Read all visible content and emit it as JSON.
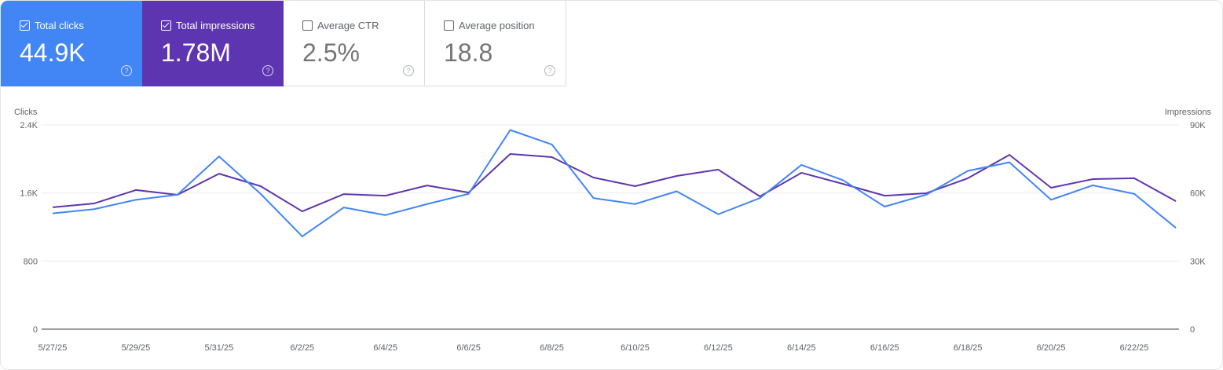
{
  "cards": [
    {
      "label": "Total clicks",
      "value": "44.9K",
      "checked": true,
      "color": "#4285f4"
    },
    {
      "label": "Total impressions",
      "value": "1.78M",
      "checked": true,
      "color": "#5e35b1"
    },
    {
      "label": "Average CTR",
      "value": "2.5%",
      "checked": false
    },
    {
      "label": "Average position",
      "value": "18.8",
      "checked": false
    }
  ],
  "chart_data": {
    "type": "line",
    "y_left_label": "Clicks",
    "y_right_label": "Impressions",
    "y_left_lim": [
      0,
      2400
    ],
    "y_right_lim": [
      0,
      90000
    ],
    "y_left_ticks": [
      "0",
      "800",
      "1.6K",
      "2.4K"
    ],
    "y_right_ticks": [
      "0",
      "30K",
      "60K",
      "90K"
    ],
    "grid": true,
    "x": [
      "5/27/25",
      "5/28/25",
      "5/29/25",
      "5/30/25",
      "5/31/25",
      "6/1/25",
      "6/2/25",
      "6/3/25",
      "6/4/25",
      "6/5/25",
      "6/6/25",
      "6/7/25",
      "6/8/25",
      "6/9/25",
      "6/10/25",
      "6/11/25",
      "6/12/25",
      "6/13/25",
      "6/14/25",
      "6/15/25",
      "6/16/25",
      "6/17/25",
      "6/18/25",
      "6/19/25",
      "6/20/25",
      "6/21/25",
      "6/22/25",
      "6/23/25"
    ],
    "x_tick_labels": [
      "5/27/25",
      "5/29/25",
      "5/31/25",
      "6/2/25",
      "6/4/25",
      "6/6/25",
      "6/8/25",
      "6/10/25",
      "6/12/25",
      "6/14/25",
      "6/16/25",
      "6/18/25",
      "6/20/25",
      "6/22/25"
    ],
    "series": [
      {
        "name": "Clicks",
        "axis": "left",
        "color": "#4285f4",
        "values": [
          1360,
          1410,
          1520,
          1580,
          2030,
          1590,
          1090,
          1430,
          1340,
          1470,
          1590,
          2340,
          2170,
          1540,
          1470,
          1620,
          1350,
          1540,
          1930,
          1750,
          1440,
          1580,
          1860,
          1960,
          1520,
          1690,
          1590,
          1190
        ]
      },
      {
        "name": "Impressions",
        "axis": "right",
        "color": "#5e35b1",
        "values": [
          53700,
          55400,
          61300,
          59200,
          68500,
          63000,
          51900,
          59500,
          58800,
          63300,
          60200,
          77200,
          75800,
          66800,
          63000,
          67500,
          70300,
          58500,
          68900,
          64000,
          58800,
          59900,
          66500,
          76800,
          62300,
          66100,
          66500,
          56400
        ]
      }
    ]
  }
}
